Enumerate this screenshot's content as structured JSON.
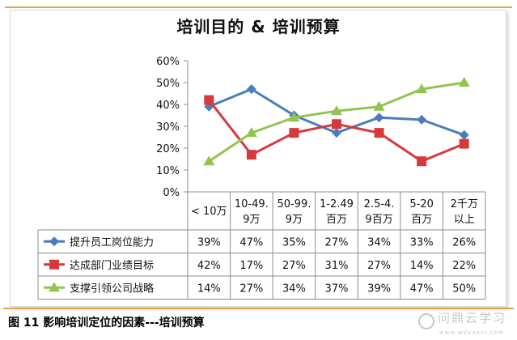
{
  "chart_data": {
    "type": "line",
    "title": "培训目的 & 培训预算",
    "categories": [
      "< 10万",
      "10-49.\n9万",
      "50-99.\n9万",
      "1-2.49\n百万",
      "2.5-4.\n9百万",
      "5-20\n百万",
      "2千万\n以上"
    ],
    "ylim": [
      0,
      60
    ],
    "ytick_labels": [
      "0%",
      "10%",
      "20%",
      "30%",
      "40%",
      "50%",
      "60%"
    ],
    "grid": false,
    "legend_placement": "data-table",
    "series": [
      {
        "name": "提升员工岗位能力",
        "color": "#4a7ebb",
        "marker": "diamond",
        "values": [
          39,
          47,
          35,
          27,
          34,
          33,
          26
        ],
        "labels": [
          "39%",
          "47%",
          "35%",
          "27%",
          "34%",
          "33%",
          "26%"
        ]
      },
      {
        "name": "达成部门业绩目标",
        "color": "#d6393c",
        "marker": "square",
        "values": [
          42,
          17,
          27,
          31,
          27,
          14,
          22
        ],
        "labels": [
          "42%",
          "17%",
          "27%",
          "31%",
          "27%",
          "14%",
          "22%"
        ]
      },
      {
        "name": "支撑引领公司战略",
        "color": "#92c550",
        "marker": "triangle",
        "values": [
          14,
          27,
          34,
          37,
          39,
          47,
          50
        ],
        "labels": [
          "14%",
          "27%",
          "34%",
          "37%",
          "39%",
          "47%",
          "50%"
        ]
      }
    ]
  },
  "caption": "图 11 影响培训定位的因素---培训预算",
  "watermark": {
    "text": "问鼎云学习",
    "url": "www.wdxuexi.com"
  }
}
